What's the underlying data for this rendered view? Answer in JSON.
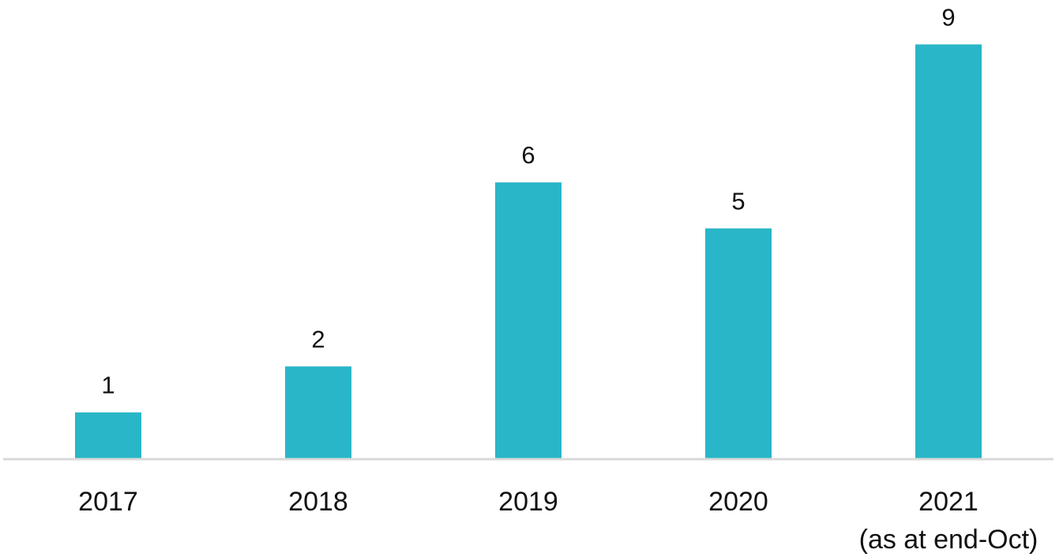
{
  "chart_data": {
    "type": "bar",
    "categories": [
      "2017",
      "2018",
      "2019",
      "2020",
      "2021"
    ],
    "category_sublabels": [
      "",
      "",
      "",
      "",
      "(as at end-Oct)"
    ],
    "values": [
      1,
      2,
      6,
      5,
      9
    ],
    "data_labels": [
      "1",
      "2",
      "6",
      "5",
      "9"
    ],
    "title": "",
    "xlabel": "",
    "ylabel": "",
    "ylim": [
      0,
      9
    ],
    "grid": false,
    "legend": "none",
    "bar_color": "#29B6C8",
    "axis_color": "#D9D9D9"
  }
}
